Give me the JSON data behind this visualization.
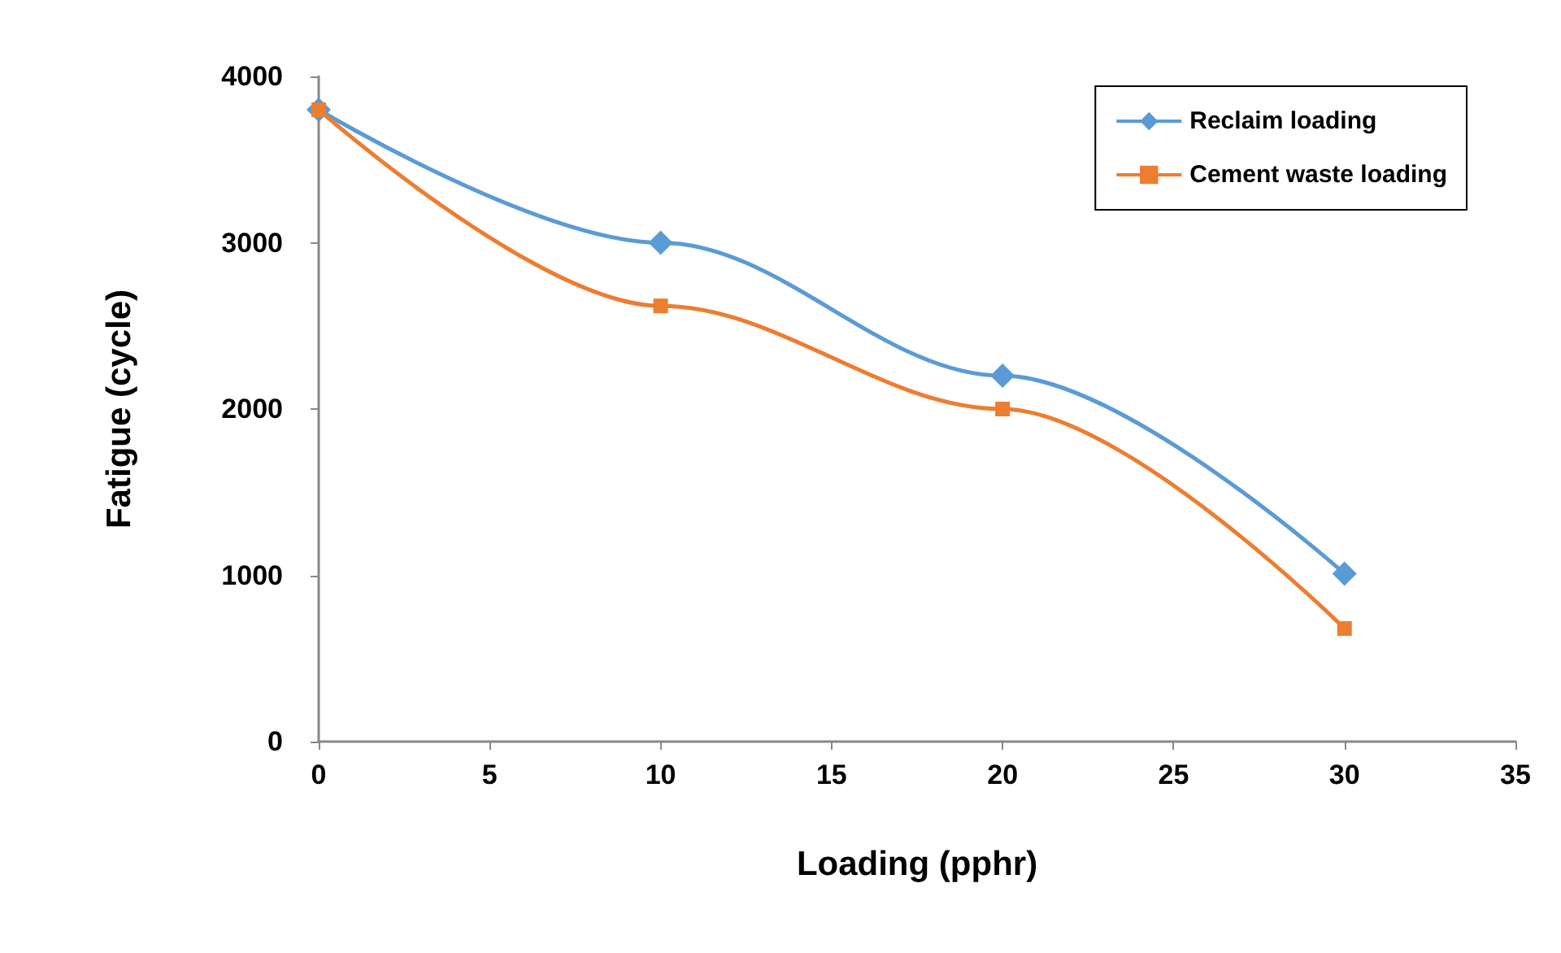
{
  "chart_data": {
    "type": "line",
    "xlabel": "Loading (pphr)",
    "ylabel": "Fatigue (cycle)",
    "x": [
      0,
      10,
      20,
      30
    ],
    "series": [
      {
        "name": "Reclaim loading",
        "color": "#5b9bd5",
        "marker": "diamond",
        "values": [
          3800,
          3000,
          2200,
          1010
        ]
      },
      {
        "name": "Cement waste loading",
        "color": "#ed7d31",
        "marker": "square",
        "values": [
          3800,
          2620,
          2000,
          680
        ]
      }
    ],
    "xlim": [
      0,
      35
    ],
    "xticks": [
      0,
      5,
      10,
      15,
      20,
      25,
      30,
      35
    ],
    "ylim": [
      0,
      4000
    ],
    "yticks": [
      0,
      1000,
      2000,
      3000,
      4000
    ],
    "grid": false,
    "legend": "top right",
    "line_style": "solid"
  }
}
